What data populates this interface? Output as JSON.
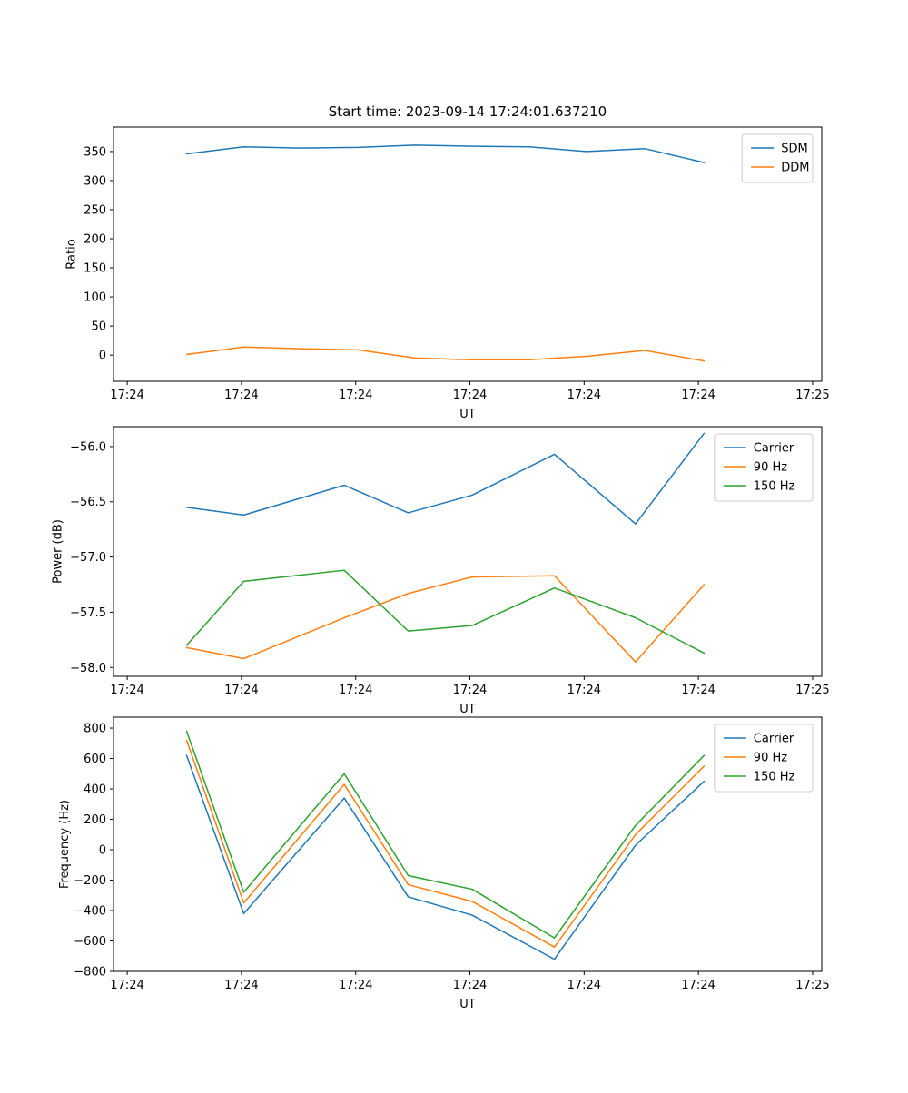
{
  "figure": {
    "background": "#ffffff"
  },
  "chart_data": [
    {
      "type": "line",
      "title": "Start time: 2023-09-14 17:24:01.637210",
      "xlabel": "UT",
      "ylabel": "Ratio",
      "xlim": [
        -0.12,
        6.08
      ],
      "ylim": [
        -45,
        392
      ],
      "grid": false,
      "legend_position": "upper-right",
      "xticks": [
        {
          "pos": 0,
          "label": "17:24"
        },
        {
          "pos": 1,
          "label": "17:24"
        },
        {
          "pos": 2,
          "label": "17:24"
        },
        {
          "pos": 3,
          "label": "17:24"
        },
        {
          "pos": 4,
          "label": "17:24"
        },
        {
          "pos": 5,
          "label": "17:24"
        },
        {
          "pos": 6,
          "label": "17:25"
        }
      ],
      "yticks": [
        {
          "pos": 0,
          "label": "0"
        },
        {
          "pos": 50,
          "label": "50"
        },
        {
          "pos": 100,
          "label": "100"
        },
        {
          "pos": 150,
          "label": "150"
        },
        {
          "pos": 200,
          "label": "200"
        },
        {
          "pos": 250,
          "label": "250"
        },
        {
          "pos": 300,
          "label": "300"
        },
        {
          "pos": 350,
          "label": "350"
        }
      ],
      "series": [
        {
          "name": "SDM",
          "color": "#1f77b4",
          "x": [
            0.52,
            1.02,
            1.52,
            2.02,
            2.52,
            3.02,
            3.52,
            4.02,
            4.53,
            5.05
          ],
          "y": [
            346,
            358,
            356,
            357,
            361,
            359,
            358,
            350,
            355,
            331
          ]
        },
        {
          "name": "DDM",
          "color": "#ff7f0e",
          "x": [
            0.52,
            1.02,
            1.52,
            2.02,
            2.52,
            3.02,
            3.52,
            4.02,
            4.53,
            5.05
          ],
          "y": [
            1,
            14,
            11,
            9,
            -5,
            -8,
            -8,
            -2,
            8,
            -10
          ]
        }
      ]
    },
    {
      "type": "line",
      "title": "",
      "xlabel": "UT",
      "ylabel": "Power (dB)",
      "xlim": [
        -0.12,
        6.08
      ],
      "ylim": [
        -58.08,
        -55.82
      ],
      "grid": false,
      "legend_position": "upper-right",
      "xticks": [
        {
          "pos": 0,
          "label": "17:24"
        },
        {
          "pos": 1,
          "label": "17:24"
        },
        {
          "pos": 2,
          "label": "17:24"
        },
        {
          "pos": 3,
          "label": "17:24"
        },
        {
          "pos": 4,
          "label": "17:24"
        },
        {
          "pos": 5,
          "label": "17:24"
        },
        {
          "pos": 6,
          "label": "17:25"
        }
      ],
      "yticks": [
        {
          "pos": -58.0,
          "label": "−58.0"
        },
        {
          "pos": -57.5,
          "label": "−57.5"
        },
        {
          "pos": -57.0,
          "label": "−57.0"
        },
        {
          "pos": -56.5,
          "label": "−56.5"
        },
        {
          "pos": -56.0,
          "label": "−56.0"
        }
      ],
      "series": [
        {
          "name": "Carrier",
          "color": "#1f77b4",
          "x": [
            0.52,
            1.02,
            1.9,
            2.46,
            3.02,
            3.74,
            4.45,
            5.05
          ],
          "y": [
            -56.55,
            -56.62,
            -56.35,
            -56.6,
            -56.44,
            -56.07,
            -56.7,
            -55.88
          ]
        },
        {
          "name": "90 Hz",
          "color": "#ff7f0e",
          "x": [
            0.52,
            1.02,
            1.9,
            2.46,
            3.02,
            3.74,
            4.45,
            5.05
          ],
          "y": [
            -57.82,
            -57.92,
            -57.55,
            -57.33,
            -57.18,
            -57.17,
            -57.95,
            -57.25
          ]
        },
        {
          "name": "150 Hz",
          "color": "#2ca02c",
          "x": [
            0.52,
            1.02,
            1.9,
            2.46,
            3.02,
            3.74,
            4.45,
            5.05
          ],
          "y": [
            -57.8,
            -57.22,
            -57.12,
            -57.67,
            -57.62,
            -57.28,
            -57.55,
            -57.87
          ]
        }
      ]
    },
    {
      "type": "line",
      "title": "",
      "xlabel": "UT",
      "ylabel": "Frequency (Hz)",
      "xlim": [
        -0.12,
        6.08
      ],
      "ylim": [
        -800,
        872
      ],
      "grid": false,
      "legend_position": "upper-right",
      "xticks": [
        {
          "pos": 0,
          "label": "17:24"
        },
        {
          "pos": 1,
          "label": "17:24"
        },
        {
          "pos": 2,
          "label": "17:24"
        },
        {
          "pos": 3,
          "label": "17:24"
        },
        {
          "pos": 4,
          "label": "17:24"
        },
        {
          "pos": 5,
          "label": "17:24"
        },
        {
          "pos": 6,
          "label": "17:25"
        }
      ],
      "yticks": [
        {
          "pos": -800,
          "label": "−800"
        },
        {
          "pos": -600,
          "label": "−600"
        },
        {
          "pos": -400,
          "label": "−400"
        },
        {
          "pos": -200,
          "label": "−200"
        },
        {
          "pos": 0,
          "label": "0"
        },
        {
          "pos": 200,
          "label": "200"
        },
        {
          "pos": 400,
          "label": "400"
        },
        {
          "pos": 600,
          "label": "600"
        },
        {
          "pos": 800,
          "label": "800"
        }
      ],
      "series": [
        {
          "name": "Carrier",
          "color": "#1f77b4",
          "x": [
            0.52,
            1.02,
            1.9,
            2.46,
            3.02,
            3.74,
            4.45,
            5.05
          ],
          "y": [
            620,
            -420,
            340,
            -310,
            -430,
            -720,
            30,
            450
          ]
        },
        {
          "name": "90 Hz",
          "color": "#ff7f0e",
          "x": [
            0.52,
            1.02,
            1.9,
            2.46,
            3.02,
            3.74,
            4.45,
            5.05
          ],
          "y": [
            720,
            -350,
            430,
            -230,
            -340,
            -640,
            100,
            550
          ]
        },
        {
          "name": "150 Hz",
          "color": "#2ca02c",
          "x": [
            0.52,
            1.02,
            1.9,
            2.46,
            3.02,
            3.74,
            4.45,
            5.05
          ],
          "y": [
            780,
            -280,
            500,
            -170,
            -260,
            -580,
            160,
            620
          ]
        }
      ]
    }
  ]
}
